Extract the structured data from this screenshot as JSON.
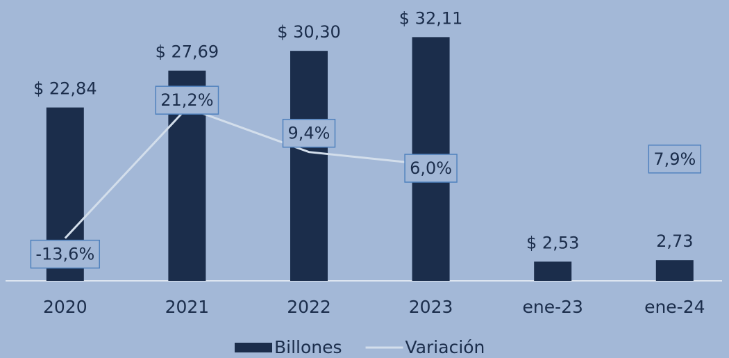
{
  "chart_data": {
    "type": "bar",
    "categories": [
      "2020",
      "2021",
      "2022",
      "2023",
      "ene-23",
      "ene-24"
    ],
    "series": [
      {
        "name": "Billones",
        "type": "bar",
        "color": "#1b2d4b",
        "values": [
          22.84,
          27.69,
          30.3,
          32.11,
          2.53,
          2.73
        ],
        "value_labels": [
          "$ 22,84",
          "$ 27,69",
          "$ 30,30",
          "$ 32,11",
          "$ 2,53",
          "2,73"
        ]
      },
      {
        "name": "Variación",
        "type": "line",
        "axis": "y2",
        "color": "#d3deeb",
        "values": [
          -13.6,
          21.2,
          9.4,
          6.0,
          null,
          7.9
        ],
        "value_labels": [
          "-13,6%",
          "21,2%",
          "9,4%",
          "6,0%",
          null,
          "7,9%"
        ]
      }
    ],
    "ylim": [
      0,
      37
    ],
    "y2lim": [
      -25,
      50
    ],
    "legend": "bottom"
  }
}
